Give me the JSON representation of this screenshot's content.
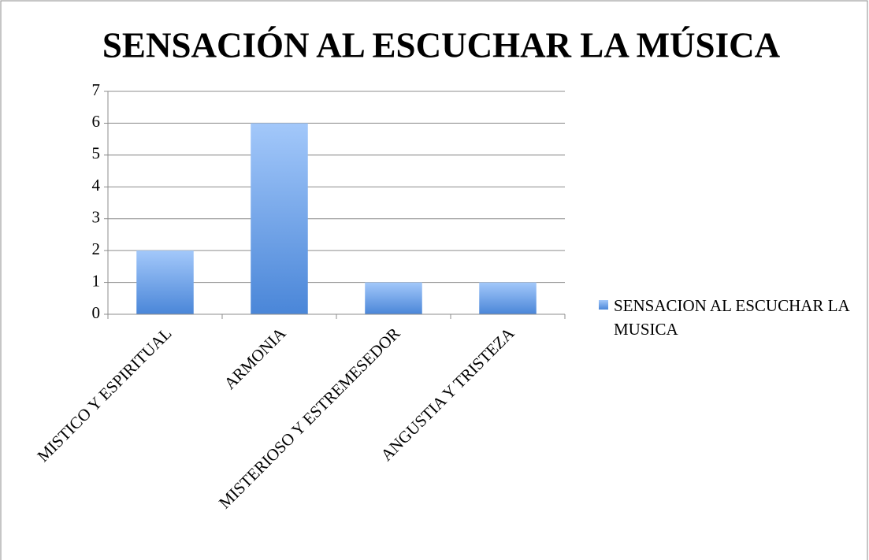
{
  "chart_data": {
    "type": "bar",
    "title": "SENSACIÓN AL ESCUCHAR LA MÚSICA",
    "categories": [
      "MISTICO Y ESPIRITUAL",
      "ARMONIA",
      "MISTERIOSO Y ESTREMESEDOR",
      "ANGUSTIA Y TRISTEZA"
    ],
    "series": [
      {
        "name": "SENSACION AL ESCUCHAR LA MUSICA",
        "color": "#4a86d8",
        "values": [
          2,
          6,
          1,
          1
        ]
      }
    ],
    "ylim": [
      0,
      7
    ],
    "yticks": [
      0,
      1,
      2,
      3,
      4,
      5,
      6,
      7
    ],
    "grid": true,
    "legend": "right"
  }
}
